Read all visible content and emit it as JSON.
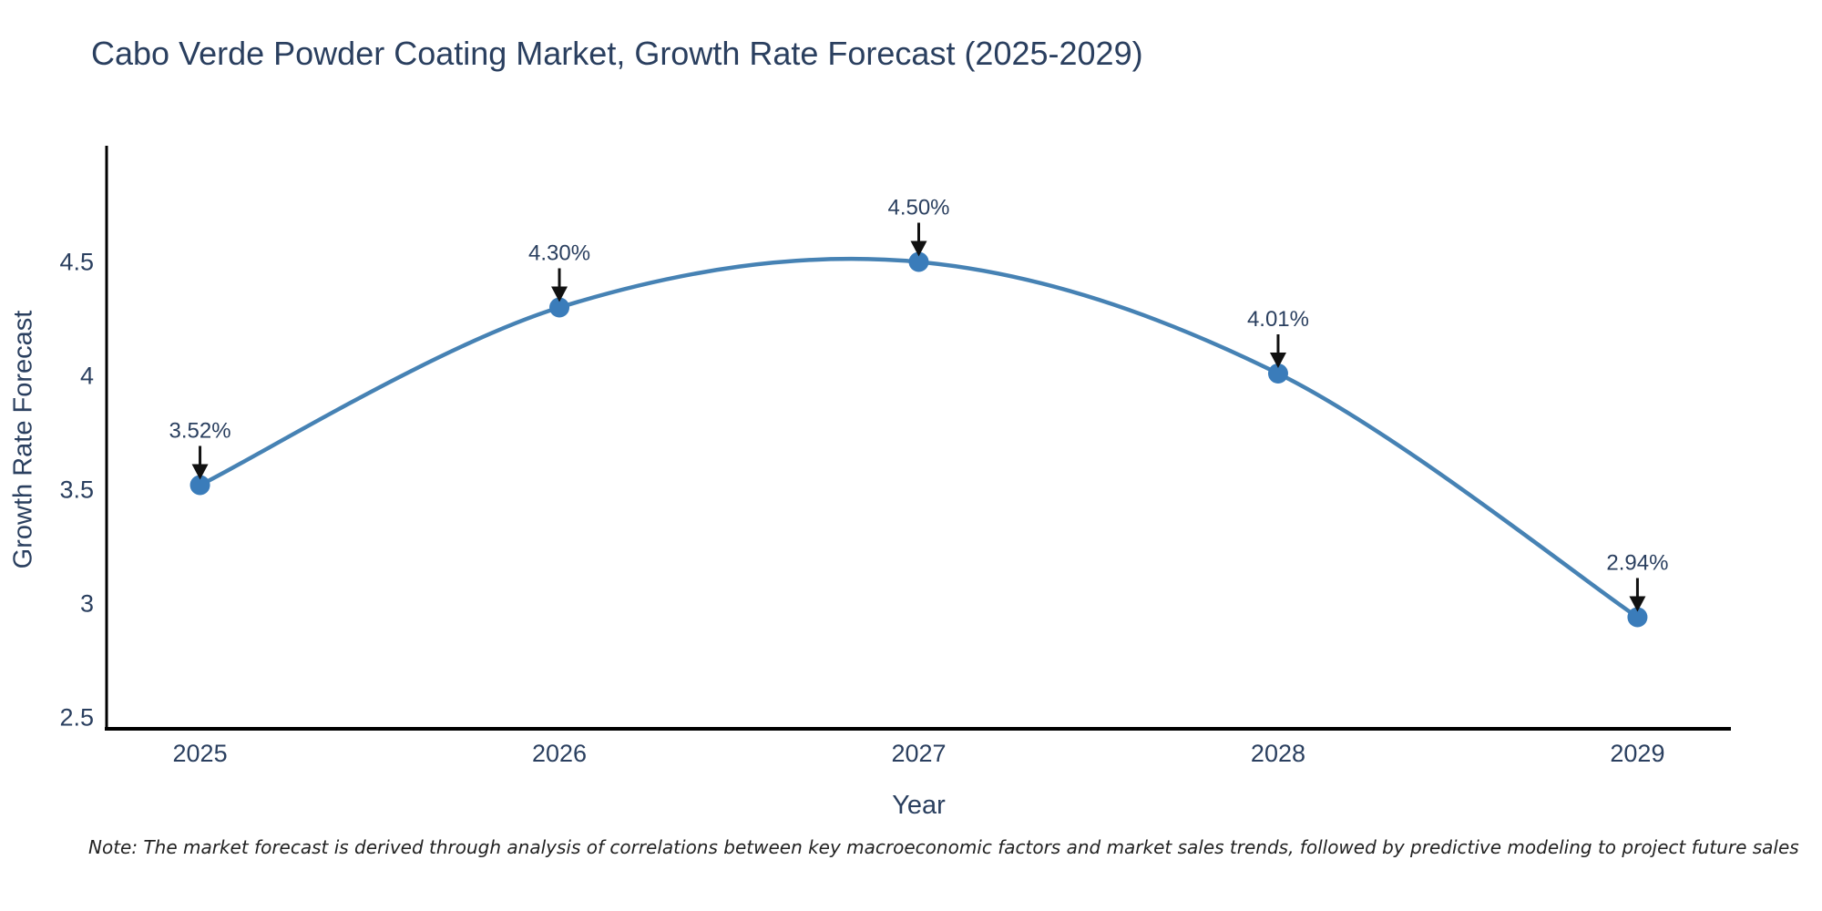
{
  "title": "Cabo Verde Powder Coating Market, Growth Rate Forecast (2025-2029)",
  "note": "Note: The market forecast is derived through analysis of correlations between key macroeconomic factors and market sales trends, followed by predictive modeling to project future sales",
  "chart_data": {
    "type": "line",
    "title": "Cabo Verde Powder Coating Market, Growth Rate Forecast (2025-2029)",
    "xlabel": "Year",
    "ylabel": "Growth Rate Forecast",
    "x": [
      2025,
      2026,
      2027,
      2028,
      2029
    ],
    "series": [
      {
        "name": "Growth Rate Forecast",
        "values": [
          3.52,
          4.3,
          4.5,
          4.01,
          2.94
        ]
      }
    ],
    "point_labels": [
      "3.52%",
      "4.30%",
      "4.50%",
      "4.01%",
      "2.94%"
    ],
    "xticks": [
      2025,
      2026,
      2027,
      2028,
      2029
    ],
    "yticks": [
      2.5,
      3,
      3.5,
      4,
      4.5
    ],
    "xlim": [
      2024.74,
      2029.26
    ],
    "ylim": [
      2.45,
      5.01
    ],
    "grid": false,
    "legend_position": "none",
    "line_shape": "spline",
    "colors": {
      "line": "#4682b4",
      "marker": "#3a7cba",
      "text": "#2a3f5f",
      "axis": "#000000",
      "arrow": "#111111"
    }
  }
}
